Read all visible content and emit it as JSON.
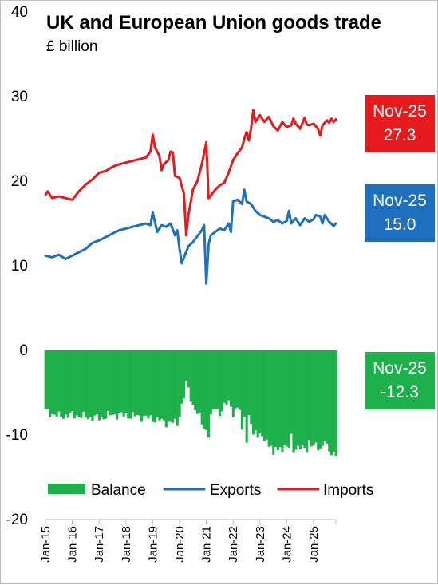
{
  "header": {
    "title": "UK and European Union goods trade",
    "subtitle": "£ billion"
  },
  "callouts": [
    {
      "key": "imports",
      "date": "Nov-25",
      "value": "27.3",
      "color": "#E41A1C"
    },
    {
      "key": "exports",
      "date": "Nov-25",
      "value": "15.0",
      "color": "#1F6FBF"
    },
    {
      "key": "balance",
      "date": "Nov-25",
      "value": "-12.3",
      "color": "#1DB04B"
    }
  ],
  "chart_data": {
    "type": "line",
    "title": "UK and European Union goods trade",
    "subtitle": "£ billion",
    "ylim": [
      -20,
      40
    ],
    "yticks": [
      40,
      30,
      20,
      10,
      0,
      -10,
      -20
    ],
    "x_start": "Jan-15",
    "x_end": "Nov-25",
    "x_tick_labels": [
      "Jan-15",
      "Jan-16",
      "Jan-17",
      "Jan-18",
      "Jan-19",
      "Jan-20",
      "Jan-21",
      "Jan-22",
      "Jan-23",
      "Jan-24",
      "Jan-25"
    ],
    "grid": false,
    "legend_position": "bottom",
    "series": [
      {
        "name": "Balance",
        "type": "bar",
        "color": "#1DB04B",
        "anchors": [
          [
            0,
            -7.2
          ],
          [
            6,
            -7.8
          ],
          [
            12,
            -7.6
          ],
          [
            18,
            -7.9
          ],
          [
            24,
            -8.0
          ],
          [
            30,
            -7.6
          ],
          [
            36,
            -7.7
          ],
          [
            42,
            -7.8
          ],
          [
            48,
            -8.1
          ],
          [
            54,
            -8.5
          ],
          [
            59,
            -8.6
          ],
          [
            61,
            -6.5
          ],
          [
            62,
            -5.5
          ],
          [
            63,
            -4.0
          ],
          [
            64,
            -4.6
          ],
          [
            66,
            -6.5
          ],
          [
            69,
            -8.0
          ],
          [
            72,
            -9.5
          ],
          [
            73,
            -10.0
          ],
          [
            74,
            -8.0
          ],
          [
            76,
            -6.5
          ],
          [
            78,
            -7.5
          ],
          [
            80,
            -6.8
          ],
          [
            82,
            -5.8
          ],
          [
            84,
            -7.5
          ],
          [
            87,
            -6.8
          ],
          [
            90,
            -7.8
          ],
          [
            93,
            -9.0
          ],
          [
            96,
            -10.2
          ],
          [
            102,
            -11.3
          ],
          [
            108,
            -11.5
          ],
          [
            114,
            -11.6
          ],
          [
            120,
            -11.3
          ],
          [
            126,
            -11.5
          ],
          [
            130,
            -12.3
          ]
        ],
        "outliers": [
          [
            88,
            -9.5
          ],
          [
            90,
            -10.8
          ],
          [
            93,
            -10.0
          ],
          [
            102,
            -12.8
          ],
          [
            104,
            -12.0
          ],
          [
            110,
            -10.2
          ],
          [
            118,
            -10.8
          ],
          [
            125,
            -10.5
          ],
          [
            127,
            -12.0
          ]
        ]
      },
      {
        "name": "Exports",
        "type": "line",
        "color": "#1F6FBF",
        "points": [
          [
            0,
            11.2
          ],
          [
            3,
            11.0
          ],
          [
            6,
            11.3
          ],
          [
            9,
            10.8
          ],
          [
            12,
            11.2
          ],
          [
            15,
            11.6
          ],
          [
            18,
            12.0
          ],
          [
            21,
            12.7
          ],
          [
            24,
            13.0
          ],
          [
            27,
            13.4
          ],
          [
            30,
            13.8
          ],
          [
            33,
            14.2
          ],
          [
            36,
            14.4
          ],
          [
            39,
            14.6
          ],
          [
            42,
            14.8
          ],
          [
            45,
            15.0
          ],
          [
            47,
            14.8
          ],
          [
            48,
            16.3
          ],
          [
            50,
            14.0
          ],
          [
            52,
            14.8
          ],
          [
            54,
            14.6
          ],
          [
            56,
            15.0
          ],
          [
            58,
            13.6
          ],
          [
            59,
            14.2
          ],
          [
            60,
            12.0
          ],
          [
            61,
            10.3
          ],
          [
            62,
            11.0
          ],
          [
            64,
            12.3
          ],
          [
            66,
            12.8
          ],
          [
            68,
            13.5
          ],
          [
            70,
            14.2
          ],
          [
            71,
            14.8
          ],
          [
            72,
            7.9
          ],
          [
            73,
            12.5
          ],
          [
            74,
            13.6
          ],
          [
            76,
            14.0
          ],
          [
            78,
            14.4
          ],
          [
            80,
            14.2
          ],
          [
            82,
            15.0
          ],
          [
            83,
            14.0
          ],
          [
            84,
            17.6
          ],
          [
            86,
            17.8
          ],
          [
            88,
            17.3
          ],
          [
            89,
            19.0
          ],
          [
            90,
            17.6
          ],
          [
            92,
            17.3
          ],
          [
            94,
            16.5
          ],
          [
            96,
            16.0
          ],
          [
            98,
            15.8
          ],
          [
            100,
            15.6
          ],
          [
            102,
            15.2
          ],
          [
            104,
            15.4
          ],
          [
            106,
            15.0
          ],
          [
            108,
            15.3
          ],
          [
            109,
            16.5
          ],
          [
            110,
            15.0
          ],
          [
            112,
            15.6
          ],
          [
            114,
            14.8
          ],
          [
            116,
            15.6
          ],
          [
            118,
            15.2
          ],
          [
            120,
            15.5
          ],
          [
            121,
            16.0
          ],
          [
            123,
            15.8
          ],
          [
            124,
            15.0
          ],
          [
            125,
            16.0
          ],
          [
            127,
            15.2
          ],
          [
            129,
            14.7
          ],
          [
            130,
            15.0
          ]
        ]
      },
      {
        "name": "Imports",
        "type": "line",
        "color": "#E41A1C",
        "points": [
          [
            0,
            18.4
          ],
          [
            1,
            18.8
          ],
          [
            3,
            18.0
          ],
          [
            6,
            18.2
          ],
          [
            9,
            18.0
          ],
          [
            12,
            17.8
          ],
          [
            15,
            18.8
          ],
          [
            18,
            19.6
          ],
          [
            21,
            20.2
          ],
          [
            24,
            21.0
          ],
          [
            27,
            21.2
          ],
          [
            30,
            21.7
          ],
          [
            33,
            22.0
          ],
          [
            36,
            22.2
          ],
          [
            39,
            22.4
          ],
          [
            42,
            22.6
          ],
          [
            45,
            22.8
          ],
          [
            47,
            23.5
          ],
          [
            48,
            25.5
          ],
          [
            49,
            24.0
          ],
          [
            51,
            23.0
          ],
          [
            52,
            21.3
          ],
          [
            53,
            22.0
          ],
          [
            55,
            22.5
          ],
          [
            56,
            23.5
          ],
          [
            57,
            23.4
          ],
          [
            58,
            20.6
          ],
          [
            60,
            20.4
          ],
          [
            62,
            18.5
          ],
          [
            63,
            13.6
          ],
          [
            64,
            16.0
          ],
          [
            65,
            17.5
          ],
          [
            66,
            19.0
          ],
          [
            68,
            20.0
          ],
          [
            70,
            22.0
          ],
          [
            72,
            24.6
          ],
          [
            73,
            18.0
          ],
          [
            74,
            18.3
          ],
          [
            76,
            19.0
          ],
          [
            78,
            19.5
          ],
          [
            80,
            19.8
          ],
          [
            82,
            21.0
          ],
          [
            84,
            22.5
          ],
          [
            86,
            23.3
          ],
          [
            88,
            24.0
          ],
          [
            89,
            25.0
          ],
          [
            90,
            25.8
          ],
          [
            91,
            24.8
          ],
          [
            92,
            26.2
          ],
          [
            93,
            28.4
          ],
          [
            94,
            27.0
          ],
          [
            96,
            27.8
          ],
          [
            98,
            27.0
          ],
          [
            100,
            27.6
          ],
          [
            102,
            26.5
          ],
          [
            104,
            26.0
          ],
          [
            106,
            27.0
          ],
          [
            108,
            26.4
          ],
          [
            110,
            26.6
          ],
          [
            111,
            27.4
          ],
          [
            112,
            26.8
          ],
          [
            114,
            26.2
          ],
          [
            116,
            27.5
          ],
          [
            117,
            26.7
          ],
          [
            118,
            26.6
          ],
          [
            120,
            26.8
          ],
          [
            122,
            26.2
          ],
          [
            123,
            25.4
          ],
          [
            124,
            26.6
          ],
          [
            126,
            27.2
          ],
          [
            127,
            26.9
          ],
          [
            128,
            27.4
          ],
          [
            129,
            27.0
          ],
          [
            130,
            27.3
          ]
        ]
      }
    ]
  }
}
